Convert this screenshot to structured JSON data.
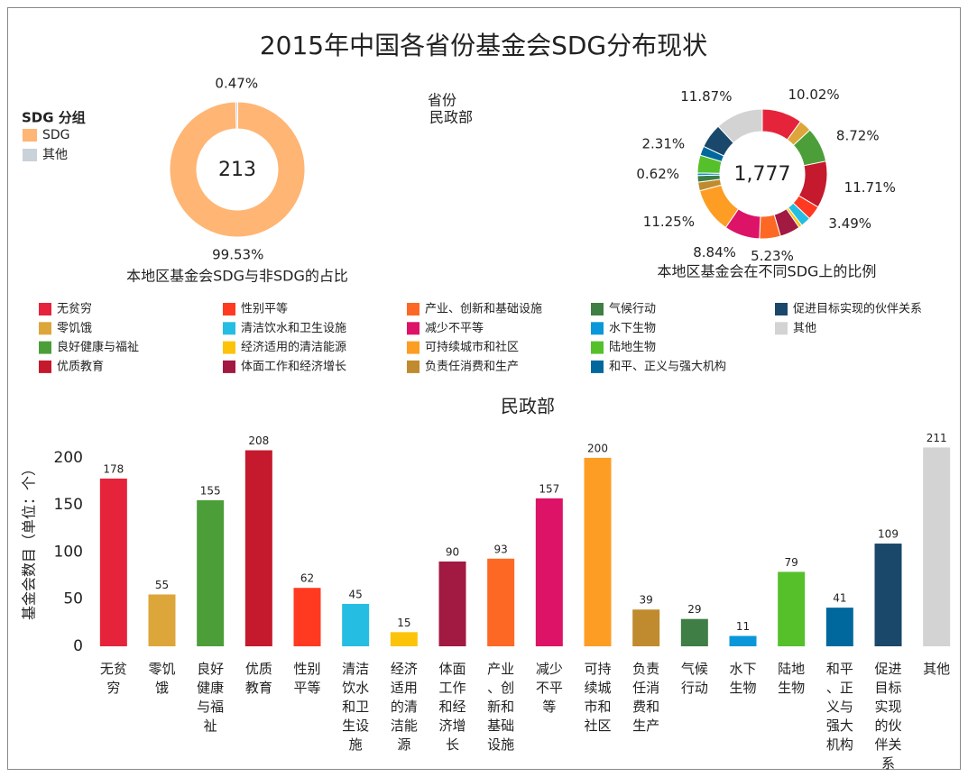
{
  "title": "2015年中国各省份基金会SDG分布现状",
  "filter": {
    "label": "省份",
    "value": "民政部"
  },
  "chart_data": [
    {
      "type": "donut",
      "caption": "本地区基金会SDG与非SDG的占比",
      "legend_title": "SDG 分组",
      "categories": [
        "SDG",
        "其他"
      ],
      "values": [
        99.53,
        0.47
      ],
      "value_labels": [
        "99.53%",
        "0.47%"
      ],
      "colors": [
        "#ffb574",
        "#c9d1d9"
      ],
      "total": 213
    },
    {
      "type": "donut",
      "caption": "本地区基金会在不同SDG上的比例",
      "categories": [
        "无贫穷",
        "零饥饿",
        "良好健康与福祉",
        "优质教育",
        "性别平等",
        "清洁饮水和卫生设施",
        "经济适用的清洁能源",
        "体面工作和经济增长",
        "产业、创新和基础设施",
        "减少不平等",
        "可持续城市和社区",
        "负责任消费和生产",
        "气候行动",
        "水下生物",
        "陆地生物",
        "和平、正义与强大机构",
        "促进目标实现的伙伴关系",
        "其他"
      ],
      "values": [
        10.02,
        3.1,
        8.72,
        11.71,
        3.49,
        2.53,
        0.84,
        5.06,
        5.23,
        8.84,
        11.25,
        2.19,
        1.63,
        0.62,
        4.45,
        2.31,
        6.13,
        11.87
      ],
      "value_labels": [
        "10.02%",
        null,
        "8.72%",
        "11.71%",
        "3.49%",
        null,
        null,
        null,
        "5.23%",
        "8.84%",
        "11.25%",
        null,
        null,
        "0.62%",
        null,
        "2.31%",
        null,
        "11.87%"
      ],
      "colors": [
        "#e5243b",
        "#dda63a",
        "#4c9f38",
        "#c5192d",
        "#ff3a21",
        "#26bde2",
        "#fcc30b",
        "#a21942",
        "#fd6925",
        "#dd1367",
        "#fd9d24",
        "#bf8b2e",
        "#3f7e44",
        "#0a97d9",
        "#56c02b",
        "#00689d",
        "#19486a",
        "#d3d3d3"
      ],
      "total": {
        "value": 1777,
        "label": "1,777"
      }
    },
    {
      "type": "bar",
      "title": "民政部",
      "y_label": "基金会数目（单位：个）",
      "categories": [
        "无贫穷",
        "零饥饿",
        "良好健康与福祉",
        "优质教育",
        "性别平等",
        "清洁饮水和卫生设施",
        "经济适用的清洁能源",
        "体面工作和经济增长",
        "产业、创新和基础设施",
        "减少不平等",
        "可持续城市和社区",
        "负责任消费和生产",
        "气候行动",
        "水下生物",
        "陆地生物",
        "和平、正义与强大机构",
        "促进目标实现的伙伴关系",
        "其他"
      ],
      "values": [
        178,
        55,
        155,
        208,
        62,
        45,
        15,
        90,
        93,
        157,
        200,
        39,
        29,
        11,
        79,
        41,
        109,
        211
      ],
      "colors": [
        "#e5243b",
        "#dda63a",
        "#4c9f38",
        "#c5192d",
        "#ff3a21",
        "#26bde2",
        "#fcc30b",
        "#a21942",
        "#fd6925",
        "#dd1367",
        "#fd9d24",
        "#bf8b2e",
        "#3f7e44",
        "#0a97d9",
        "#56c02b",
        "#00689d",
        "#19486a",
        "#d3d3d3"
      ],
      "ylim": [
        0,
        220
      ],
      "yticks": [
        0,
        50,
        100,
        150,
        200
      ]
    }
  ]
}
